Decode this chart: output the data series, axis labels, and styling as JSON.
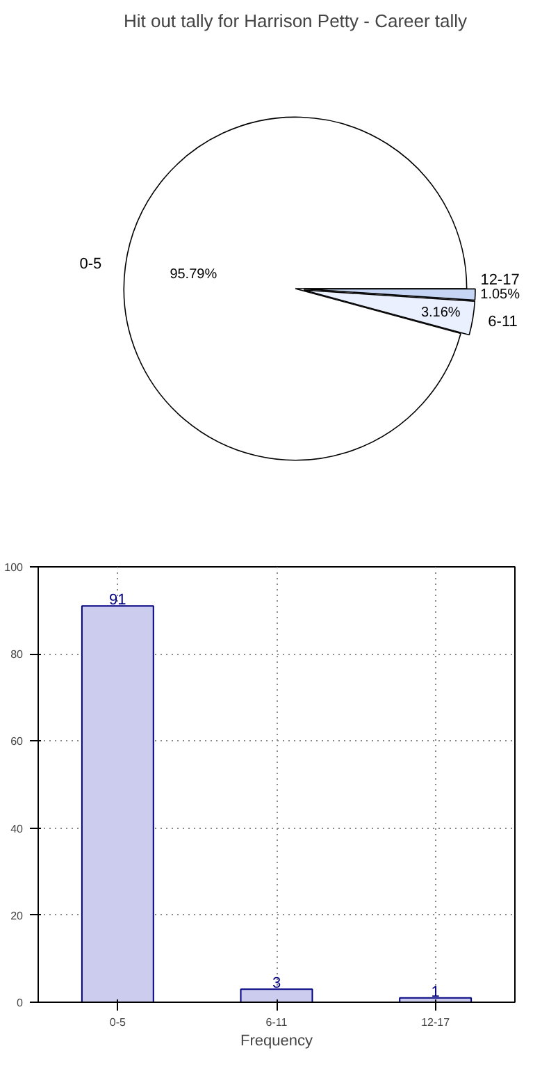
{
  "chart_data": [
    {
      "type": "pie",
      "title": "Hit out tally for Harrison Petty - Career tally",
      "categories": [
        "0-5",
        "6-11",
        "12-17"
      ],
      "values": [
        95.79,
        3.16,
        1.05
      ],
      "colors": [
        "#ffffff",
        "#eaf0fd",
        "#c5d5f3"
      ],
      "value_labels": [
        "95.79%",
        "3.16%",
        "1.05%"
      ]
    },
    {
      "type": "bar",
      "categories": [
        "0-5",
        "6-11",
        "12-17"
      ],
      "values": [
        91,
        3,
        1
      ],
      "color": "#ccccee",
      "xlabel": "Frequency",
      "ylim": [
        0,
        100
      ],
      "yticks": [
        0,
        20,
        40,
        60,
        80,
        100
      ],
      "grid": true,
      "data_labels": true
    }
  ]
}
